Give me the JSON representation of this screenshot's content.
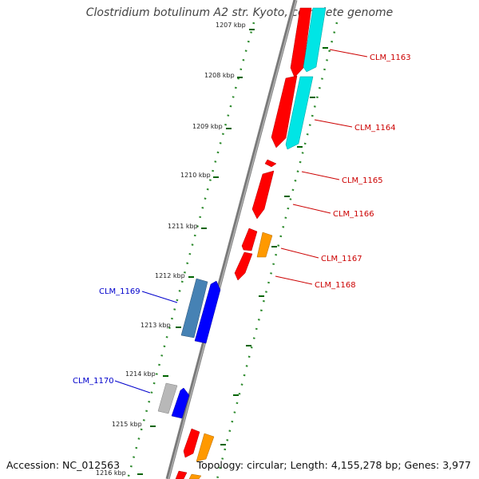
{
  "title": "Clostridium botulinum A2 str. Kyoto, complete genome",
  "accession_text": "Accession: NC_012563",
  "summary_text": "Topology: circular; Length: 4,155,278 bp; Genes: 3,977",
  "colors": {
    "backbone": "#888888",
    "tick_track": "#2e8b2e",
    "forward_cds": "#ff0000",
    "forward_label": "#cc0000",
    "forward_cyan": "#00e5e5",
    "forward_orange": "#ff9900",
    "reverse_cds": "#0000ff",
    "reverse_steel": "#4682b4",
    "reverse_gray": "#b8b8b8",
    "reverse_label": "#0000cc"
  },
  "ticks": [
    {
      "label": "1207 kbp"
    },
    {
      "label": "1208 kbp"
    },
    {
      "label": "1209 kbp"
    },
    {
      "label": "1210 kbp"
    },
    {
      "label": "1211 kbp"
    },
    {
      "label": "1212 kbp"
    },
    {
      "label": "1213 kbp"
    },
    {
      "label": "1214 kbp"
    },
    {
      "label": "1215 kbp"
    },
    {
      "label": "1216 kbp"
    }
  ],
  "gene_labels": {
    "forward": [
      "CLM_1163",
      "CLM_1164",
      "CLM_1165",
      "CLM_1166",
      "CLM_1167",
      "CLM_1168"
    ],
    "reverse": [
      "CLM_1169",
      "CLM_1170"
    ]
  }
}
